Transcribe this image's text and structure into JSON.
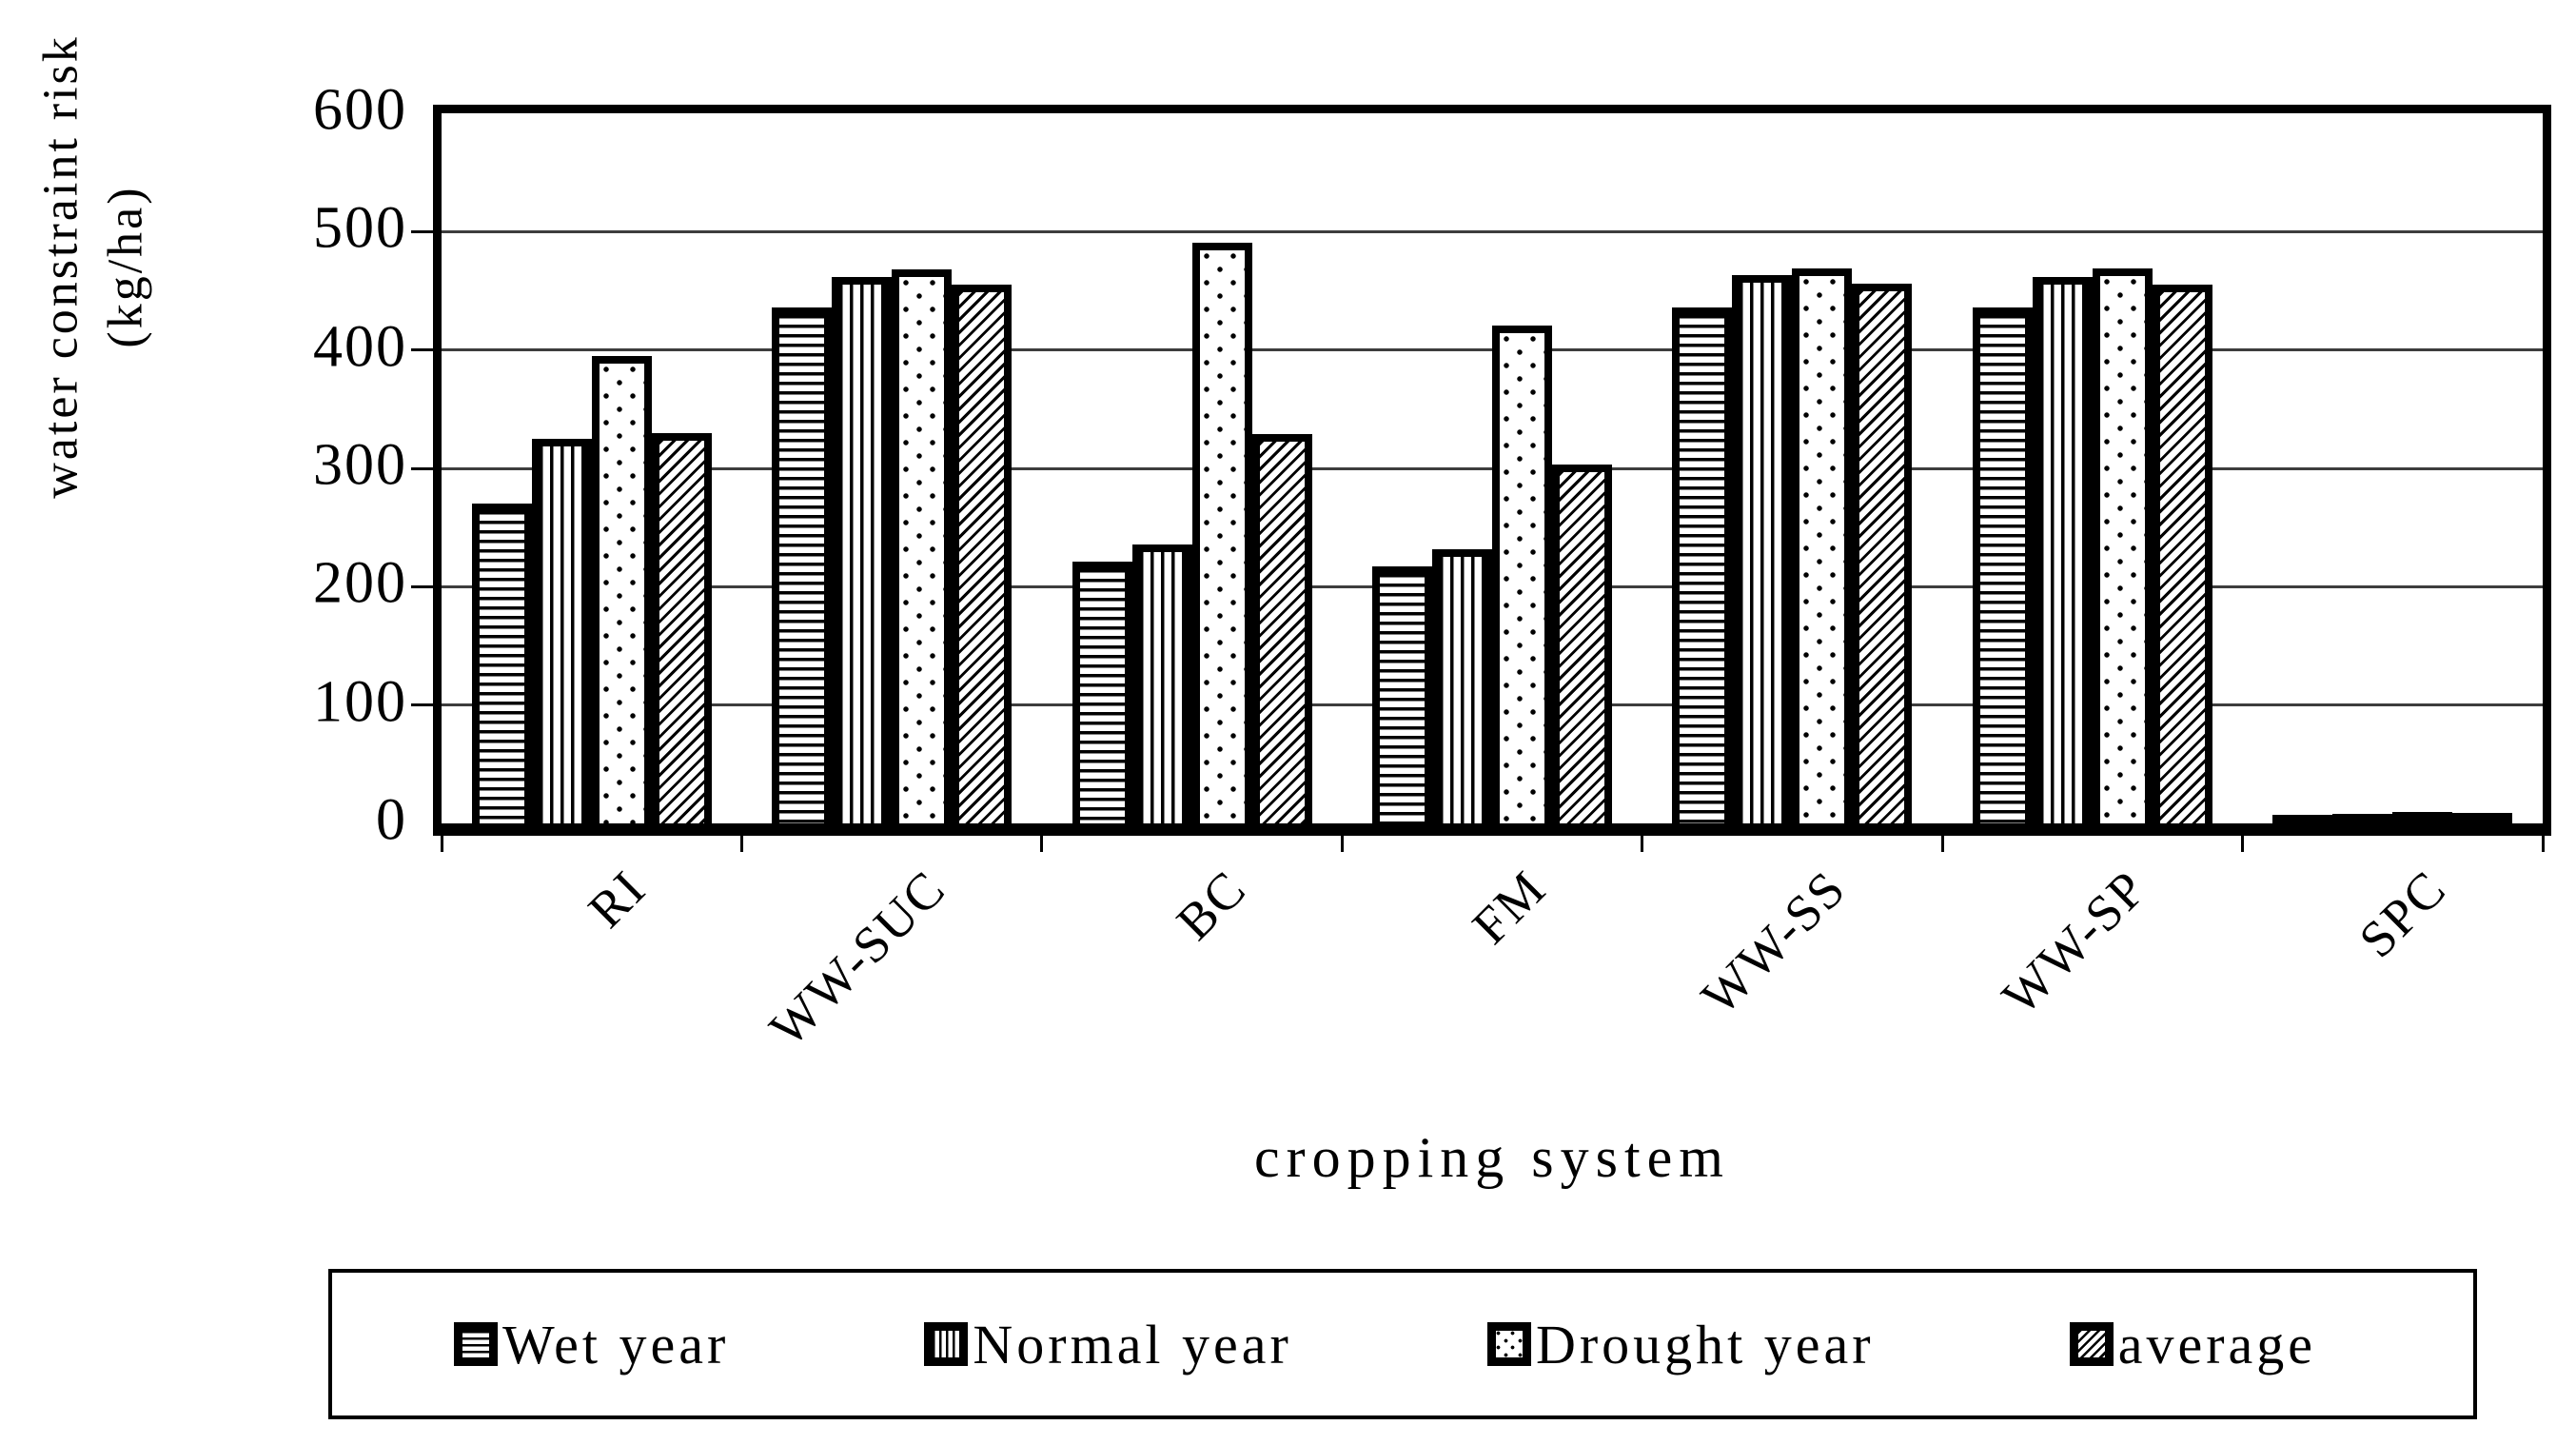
{
  "colors": {
    "ink": "#000000",
    "background": "#ffffff"
  },
  "chart_data": {
    "type": "bar",
    "title": "",
    "xlabel": "cropping system",
    "ylabel": "water constraint risk (kg/ha)",
    "ylabel_line1": "water constraint risk",
    "ylabel_line2": "(kg/ha)",
    "ylim": [
      0,
      600
    ],
    "yticks": [
      0,
      100,
      200,
      300,
      400,
      500,
      600
    ],
    "grid": "horizontal",
    "legend_position": "bottom",
    "categories": [
      "RI",
      "WW-SUC",
      "BC",
      "FM",
      "WW-SS",
      "WW-SP",
      "SPC"
    ],
    "series": [
      {
        "name": "Wet year",
        "pattern": "horizontal-lines",
        "values": [
          270,
          436,
          221,
          217,
          436,
          436,
          3
        ]
      },
      {
        "name": "Normal year",
        "pattern": "vertical-lines",
        "values": [
          325,
          462,
          236,
          232,
          463,
          462,
          4
        ]
      },
      {
        "name": "Drought year",
        "pattern": "dots",
        "values": [
          395,
          468,
          491,
          421,
          469,
          469,
          6
        ]
      },
      {
        "name": "average",
        "pattern": "diagonal-lines",
        "values": [
          330,
          455,
          329,
          303,
          456,
          455,
          5
        ]
      }
    ]
  }
}
